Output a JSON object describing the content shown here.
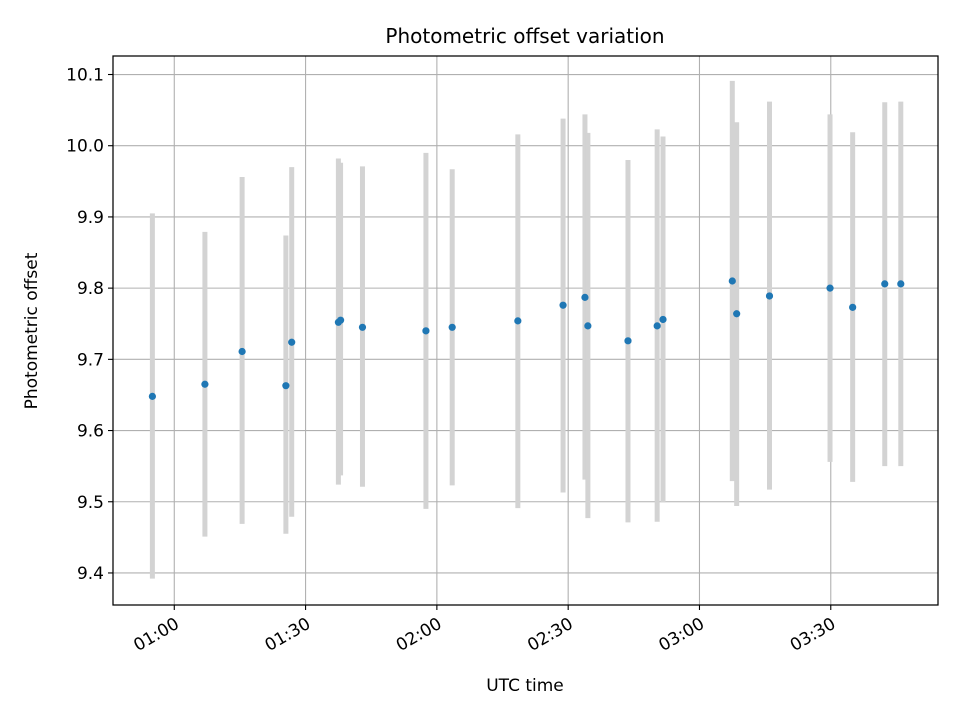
{
  "chart_data": {
    "type": "scatter",
    "title": "Photometric offset variation",
    "xlabel": "UTC time",
    "ylabel": "Photometric offset",
    "x_axis_kind": "time",
    "xlim": [
      "00:46:00",
      "03:54:30"
    ],
    "ylim": [
      9.355,
      10.126
    ],
    "grid": true,
    "x_ticks": [
      {
        "t": "01:00",
        "label": "01:00"
      },
      {
        "t": "01:30",
        "label": "01:30"
      },
      {
        "t": "02:00",
        "label": "02:00"
      },
      {
        "t": "02:30",
        "label": "02:30"
      },
      {
        "t": "03:00",
        "label": "03:00"
      },
      {
        "t": "03:30",
        "label": "03:30"
      }
    ],
    "y_ticks": [
      {
        "v": 9.4,
        "label": "9.4"
      },
      {
        "v": 9.5,
        "label": "9.5"
      },
      {
        "v": 9.6,
        "label": "9.6"
      },
      {
        "v": 9.7,
        "label": "9.7"
      },
      {
        "v": 9.8,
        "label": "9.8"
      },
      {
        "v": 9.9,
        "label": "9.9"
      },
      {
        "v": 10.0,
        "label": "10.0"
      },
      {
        "v": 10.1,
        "label": "10.1"
      }
    ],
    "colors": {
      "point": "#1f77b4",
      "errorbar": "#d3d3d3",
      "grid": "#b0b0b0"
    },
    "points": [
      {
        "t": "00:55:00",
        "y": 9.648,
        "lo": 9.392,
        "hi": 9.905
      },
      {
        "t": "01:07:00",
        "y": 9.665,
        "lo": 9.451,
        "hi": 9.879
      },
      {
        "t": "01:15:30",
        "y": 9.711,
        "lo": 9.469,
        "hi": 9.956
      },
      {
        "t": "01:25:30",
        "y": 9.663,
        "lo": 9.455,
        "hi": 9.874
      },
      {
        "t": "01:26:50",
        "y": 9.724,
        "lo": 9.479,
        "hi": 9.97
      },
      {
        "t": "01:37:30",
        "y": 9.752,
        "lo": 9.524,
        "hi": 9.982
      },
      {
        "t": "01:38:00",
        "y": 9.755,
        "lo": 9.537,
        "hi": 9.976
      },
      {
        "t": "01:43:00",
        "y": 9.745,
        "lo": 9.521,
        "hi": 9.971
      },
      {
        "t": "01:57:30",
        "y": 9.74,
        "lo": 9.49,
        "hi": 9.99
      },
      {
        "t": "02:03:30",
        "y": 9.745,
        "lo": 9.523,
        "hi": 9.967
      },
      {
        "t": "02:18:30",
        "y": 9.754,
        "lo": 9.491,
        "hi": 10.016
      },
      {
        "t": "02:28:50",
        "y": 9.776,
        "lo": 9.513,
        "hi": 10.038
      },
      {
        "t": "02:33:50",
        "y": 9.787,
        "lo": 9.531,
        "hi": 10.044
      },
      {
        "t": "02:34:30",
        "y": 9.747,
        "lo": 9.477,
        "hi": 10.018
      },
      {
        "t": "02:43:40",
        "y": 9.726,
        "lo": 9.471,
        "hi": 9.98
      },
      {
        "t": "02:50:20",
        "y": 9.747,
        "lo": 9.472,
        "hi": 10.023
      },
      {
        "t": "02:51:40",
        "y": 9.756,
        "lo": 9.499,
        "hi": 10.013
      },
      {
        "t": "03:07:30",
        "y": 9.81,
        "lo": 9.529,
        "hi": 10.091
      },
      {
        "t": "03:08:30",
        "y": 9.764,
        "lo": 9.494,
        "hi": 10.033
      },
      {
        "t": "03:16:00",
        "y": 9.789,
        "lo": 9.517,
        "hi": 10.062
      },
      {
        "t": "03:29:50",
        "y": 9.8,
        "lo": 9.556,
        "hi": 10.044
      },
      {
        "t": "03:35:00",
        "y": 9.773,
        "lo": 9.528,
        "hi": 10.019
      },
      {
        "t": "03:42:20",
        "y": 9.806,
        "lo": 9.55,
        "hi": 10.061
      },
      {
        "t": "03:46:00",
        "y": 9.806,
        "lo": 9.55,
        "hi": 10.062
      }
    ]
  }
}
